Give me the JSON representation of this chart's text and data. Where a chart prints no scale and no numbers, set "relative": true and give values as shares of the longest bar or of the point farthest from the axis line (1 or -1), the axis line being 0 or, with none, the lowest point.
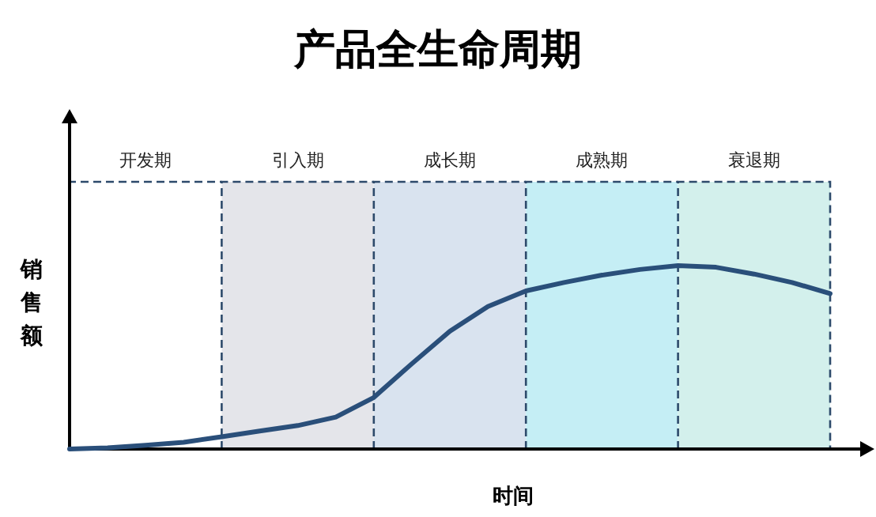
{
  "chart_data": {
    "type": "line",
    "title": "产品全生命周期",
    "xlabel": "时间",
    "ylabel": "销售额",
    "relative": true,
    "line_style": "solid",
    "categories": [
      null,
      null,
      null,
      null,
      null,
      null,
      null,
      null,
      null,
      null,
      null,
      null,
      null,
      null,
      null,
      null,
      null,
      null,
      null,
      null,
      null
    ],
    "series": [
      {
        "color": "#2a4f7a",
        "values": [
          0,
          0.006,
          0.02,
          0.037,
          0.067,
          0.098,
          0.128,
          0.174,
          0.281,
          0.465,
          0.642,
          0.777,
          0.862,
          0.908,
          0.948,
          0.979,
          1.0,
          0.991,
          0.954,
          0.908,
          0.847
        ]
      }
    ],
    "annotations": [
      "开发期",
      "引入期",
      "成长期",
      "成熟期",
      "衰退期"
    ]
  }
}
